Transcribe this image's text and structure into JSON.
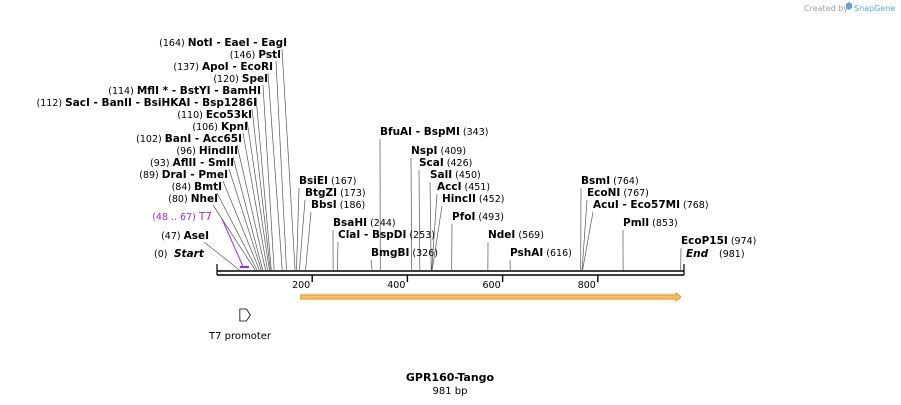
{
  "credit": {
    "prefix": "Created by",
    "brand": "SnapGene"
  },
  "map": {
    "title": "GPR160-Tango",
    "length_label": "981 bp",
    "length": 981,
    "start_label": "Start",
    "start_pos": "(0)",
    "end_label": "End",
    "end_pos": "(981)",
    "ticks": [
      "200",
      "400",
      "600",
      "800"
    ],
    "tick_values": [
      200,
      400,
      600,
      800
    ]
  },
  "sites_left": [
    {
      "pos": "(164)",
      "cut": 164,
      "names": [
        "NotI",
        "EaeI",
        "EagI"
      ]
    },
    {
      "pos": "(146)",
      "cut": 146,
      "names": [
        "PstI"
      ]
    },
    {
      "pos": "(137)",
      "cut": 137,
      "names": [
        "ApoI",
        "EcoRI"
      ]
    },
    {
      "pos": "(120)",
      "cut": 120,
      "names": [
        "SpeI"
      ]
    },
    {
      "pos": "(114)",
      "cut": 114,
      "names": [
        "MflI *",
        "BstYI",
        "BamHI"
      ]
    },
    {
      "pos": "(112)",
      "cut": 112,
      "names": [
        "SacI",
        "BanII",
        "BsiHKAI",
        "Bsp1286I"
      ]
    },
    {
      "pos": "(110)",
      "cut": 110,
      "names": [
        "Eco53kI"
      ]
    },
    {
      "pos": "(106)",
      "cut": 106,
      "names": [
        "KpnI"
      ]
    },
    {
      "pos": "(102)",
      "cut": 102,
      "names": [
        "BanI",
        "Acc65I"
      ]
    },
    {
      "pos": "(96)",
      "cut": 96,
      "names": [
        "HindIII"
      ]
    },
    {
      "pos": "(93)",
      "cut": 93,
      "names": [
        "AflII",
        "SmlI"
      ]
    },
    {
      "pos": "(89)",
      "cut": 89,
      "names": [
        "DraI",
        "PmeI"
      ]
    },
    {
      "pos": "(84)",
      "cut": 84,
      "names": [
        "BmtI"
      ]
    },
    {
      "pos": "(80)",
      "cut": 80,
      "names": [
        "NheI"
      ]
    },
    {
      "pos": "(47)",
      "cut": 47,
      "names": [
        "AseI"
      ]
    }
  ],
  "primer": {
    "range": "(48 .. 67)",
    "name": "T7",
    "start": 48,
    "end": 67
  },
  "sites_right": [
    {
      "names": [
        "BfuAI",
        "BspMI"
      ],
      "pos": "(343)",
      "cut": 343
    },
    {
      "names": [
        "NspI"
      ],
      "pos": "(409)",
      "cut": 409
    },
    {
      "names": [
        "ScaI"
      ],
      "pos": "(426)",
      "cut": 426
    },
    {
      "names": [
        "SalI"
      ],
      "pos": "(450)",
      "cut": 450
    },
    {
      "names": [
        "AccI"
      ],
      "pos": "(451)",
      "cut": 451
    },
    {
      "names": [
        "HincII"
      ],
      "pos": "(452)",
      "cut": 452
    },
    {
      "names": [
        "PfoI"
      ],
      "pos": "(493)",
      "cut": 493
    },
    {
      "names": [
        "BsiEI"
      ],
      "pos": "(167)",
      "cut": 167
    },
    {
      "names": [
        "BtgZI"
      ],
      "pos": "(173)",
      "cut": 173
    },
    {
      "names": [
        "BbsI"
      ],
      "pos": "(186)",
      "cut": 186
    },
    {
      "names": [
        "BsaHI"
      ],
      "pos": "(244)",
      "cut": 244
    },
    {
      "names": [
        "ClaI",
        "BspDI"
      ],
      "pos": "(253)",
      "cut": 253
    },
    {
      "names": [
        "BmgBI"
      ],
      "pos": "(326)",
      "cut": 326
    },
    {
      "names": [
        "NdeI"
      ],
      "pos": "(569)",
      "cut": 569
    },
    {
      "names": [
        "PshAI"
      ],
      "pos": "(616)",
      "cut": 616
    },
    {
      "names": [
        "BsmI"
      ],
      "pos": "(764)",
      "cut": 764
    },
    {
      "names": [
        "EcoNI"
      ],
      "pos": "(767)",
      "cut": 767
    },
    {
      "names": [
        "AcuI",
        "Eco57MI"
      ],
      "pos": "(768)",
      "cut": 768
    },
    {
      "names": [
        "PmlI"
      ],
      "pos": "(853)",
      "cut": 853
    },
    {
      "names": [
        "EcoP15I"
      ],
      "pos": "(974)",
      "cut": 974
    }
  ],
  "features": {
    "promoter": {
      "label": "T7 promoter",
      "start": 48,
      "end": 66
    },
    "orf": {
      "start": 176,
      "end": 981,
      "color": "#f5c26b",
      "edge": "#e08a1e"
    }
  },
  "colors": {
    "primer": "#9b30d9",
    "backbone": "#000000",
    "brand": "#5aa5e6"
  }
}
